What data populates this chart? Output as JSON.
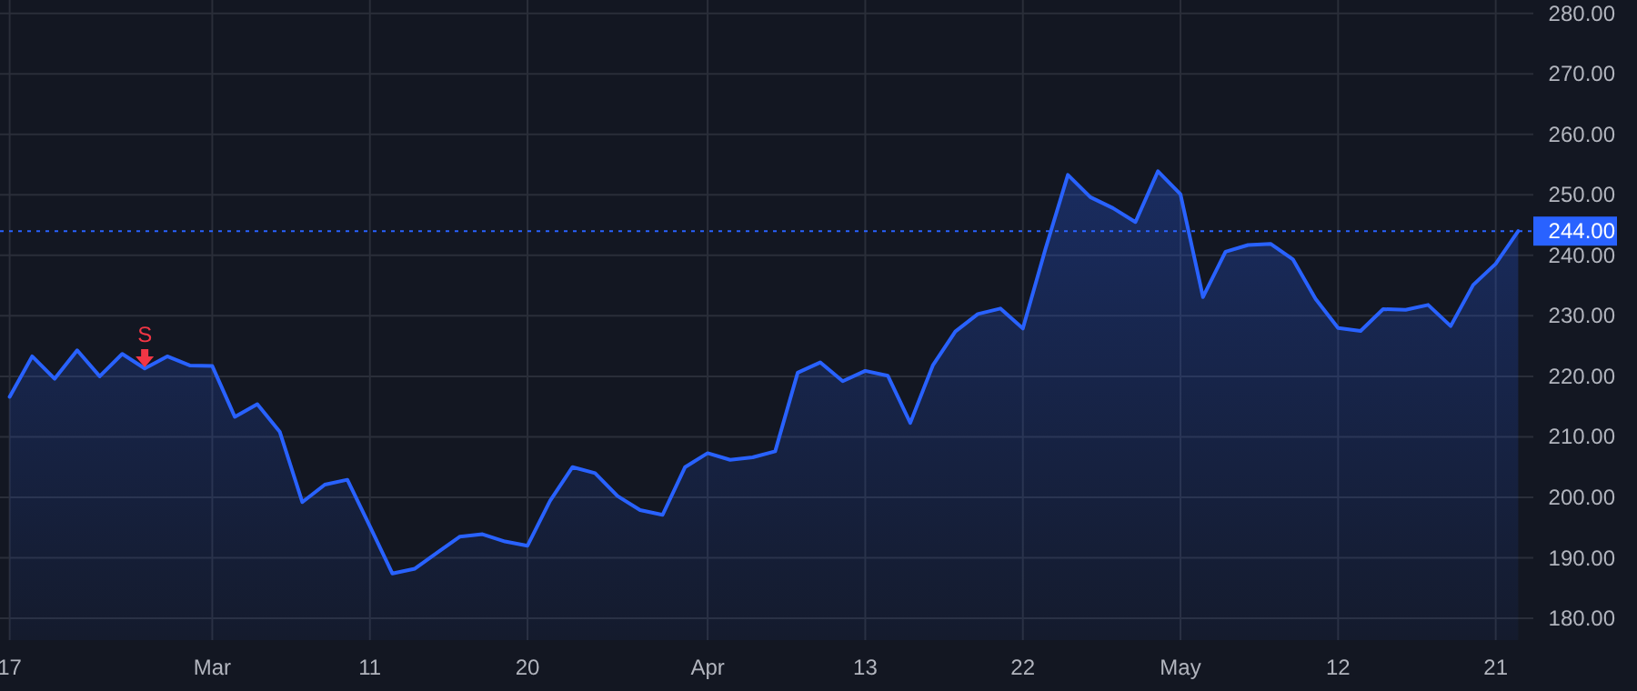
{
  "chart_data": {
    "type": "area",
    "categories": [
      "17",
      null,
      null,
      null,
      null,
      null,
      null,
      null,
      null,
      "Mar",
      null,
      null,
      null,
      null,
      null,
      null,
      "11",
      null,
      null,
      null,
      null,
      null,
      null,
      "20",
      null,
      null,
      null,
      null,
      null,
      null,
      null,
      "Apr",
      null,
      null,
      null,
      null,
      null,
      null,
      "13",
      null,
      null,
      null,
      null,
      null,
      null,
      "22",
      null,
      null,
      null,
      null,
      null,
      null,
      "May",
      null,
      null,
      null,
      null,
      null,
      null,
      "12",
      null,
      null,
      null,
      null,
      null,
      null,
      "21",
      null
    ],
    "series": [
      {
        "color": "#2962ff",
        "values": [
          216.6,
          223.3,
          219.6,
          224.3,
          220.0,
          223.7,
          221.3,
          223.3,
          221.8,
          221.7,
          213.3,
          215.4,
          210.8,
          199.2,
          202.1,
          202.9,
          195.2,
          187.4,
          188.2,
          190.9,
          193.5,
          193.9,
          192.7,
          192.0,
          199.4,
          205.0,
          204.0,
          200.2,
          197.9,
          197.1,
          205.0,
          207.3,
          206.2,
          206.6,
          207.6,
          220.6,
          222.3,
          219.2,
          220.9,
          220.1,
          212.3,
          221.8,
          227.4,
          230.3,
          231.2,
          227.9,
          241,
          253.3,
          249.6,
          247.8,
          245.5,
          253.9,
          250.1,
          233.1,
          240.6,
          241.7,
          241.9,
          239.3,
          232.8,
          228.0,
          227.5,
          231.1,
          231.0,
          231.8,
          228.3,
          235.1,
          238.6,
          244.0
        ]
      },
      {
        "type": "scatter",
        "color": "#f23645",
        "marker": "triangle",
        "values": [
          null,
          null,
          null,
          null,
          null,
          null,
          223.0,
          null,
          null,
          null,
          null,
          null,
          null,
          null,
          null,
          null,
          null,
          null,
          null,
          null,
          null,
          null,
          null,
          null,
          null,
          null,
          null,
          null,
          null,
          null,
          null,
          null,
          null,
          null,
          null,
          null,
          null,
          null,
          null,
          null,
          null,
          null,
          null,
          null,
          null,
          null,
          null,
          null,
          null,
          null,
          null,
          null,
          null,
          null,
          null,
          null,
          null,
          null,
          null,
          null,
          null,
          null,
          null,
          null,
          null,
          null,
          null,
          null
        ]
      }
    ],
    "annotations": [
      "S"
    ],
    "ylim": [
      176.4,
      282.2
    ],
    "yticks": [
      {
        "value": 180,
        "label": "180.00"
      },
      {
        "value": 190,
        "label": "190.00"
      },
      {
        "value": 200,
        "label": "200.00"
      },
      {
        "value": 210,
        "label": "210.00"
      },
      {
        "value": 220,
        "label": "220.00"
      },
      {
        "value": 230,
        "label": "230.00"
      },
      {
        "value": 240,
        "label": "240.00"
      },
      {
        "value": 250,
        "label": "250.00"
      },
      {
        "value": 260,
        "label": "260.00"
      },
      {
        "value": 270,
        "label": "270.00"
      },
      {
        "value": 280,
        "label": "280.00"
      }
    ],
    "ref_lines": [
      {
        "axis": "y",
        "value": 244,
        "label": "244.00",
        "color": "#2962ff",
        "line_style": "dotted"
      }
    ],
    "grid": true,
    "line_style": "solid"
  }
}
